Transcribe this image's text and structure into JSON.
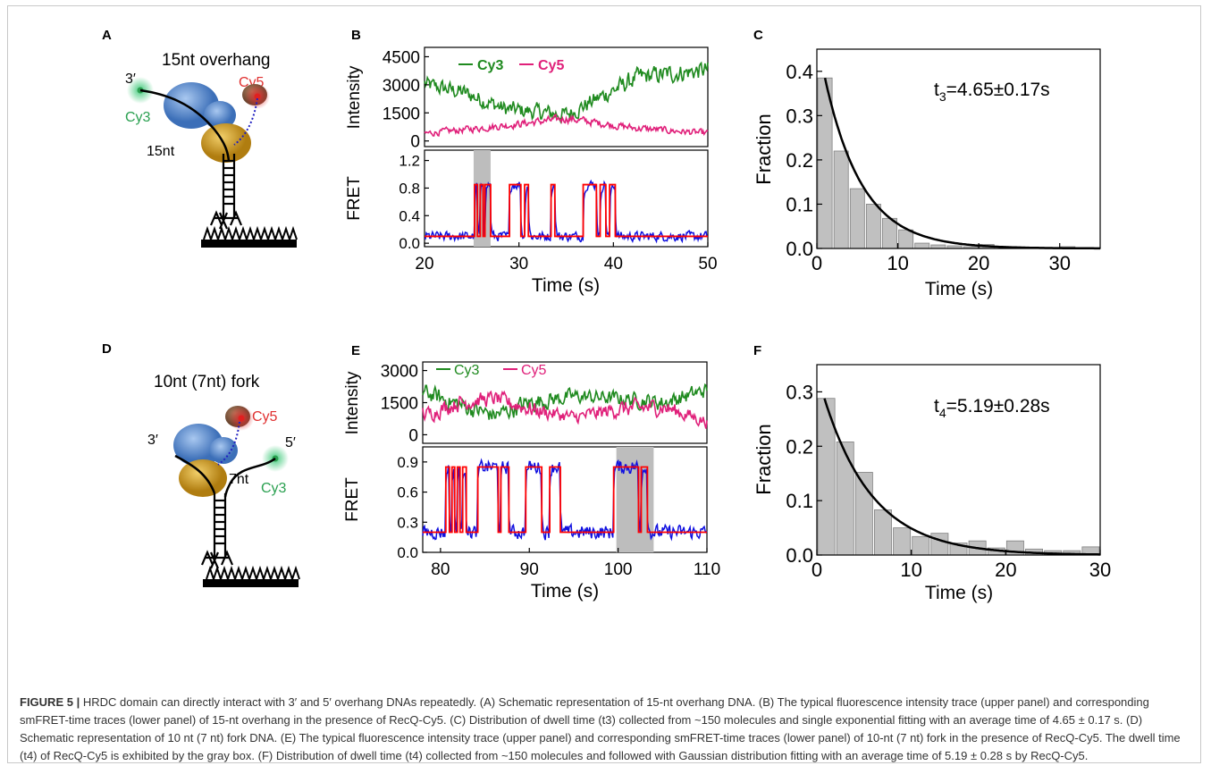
{
  "panels": {
    "A": {
      "letter": "A",
      "title": "15nt overhang",
      "label_3prime": "3′",
      "label_cy3": "Cy3",
      "label_cy5": "Cy5",
      "label_len": "15nt"
    },
    "D": {
      "letter": "D",
      "title": "10nt (7nt) fork",
      "label_3prime": "3′",
      "label_5prime": "5′",
      "label_cy3": "Cy3",
      "label_cy5": "Cy5",
      "label_len": "7nt"
    },
    "B": {
      "letter": "B"
    },
    "C": {
      "letter": "C"
    },
    "E": {
      "letter": "E"
    },
    "F": {
      "letter": "F"
    }
  },
  "colors": {
    "cy3": "#1f8a1f",
    "cy5": "#e0207a",
    "fret": "#1010e0",
    "fit": "#ff0000",
    "bar": "#c0c0c0",
    "fitcurve": "#000000",
    "cy3_dye": "#3cc878",
    "cy5_dye": "#e03030",
    "protein_blue": "#5b8fd4",
    "protein_gold": "#d4a020"
  },
  "chart_data": [
    {
      "id": "B",
      "type": "line",
      "top": {
        "ylabel": "Intensity",
        "yticks": [
          0,
          1500,
          3000,
          4500
        ],
        "ylim": [
          -300,
          5000
        ],
        "series": [
          {
            "name": "Cy3",
            "color": "#1f8a1f",
            "segments": [
              [
                20,
                3000,
                900
              ],
              [
                24,
                2600,
                900
              ],
              [
                28.5,
                1700,
                900
              ],
              [
                35,
                1400,
                900
              ],
              [
                42.5,
                3400,
                1000
              ],
              [
                50,
                3800,
                1000
              ]
            ]
          },
          {
            "name": "Cy5",
            "color": "#e0207a",
            "segments": [
              [
                20,
                400,
                350
              ],
              [
                28,
                800,
                400
              ],
              [
                35,
                1200,
                450
              ],
              [
                42,
                700,
                400
              ],
              [
                50,
                400,
                350
              ]
            ]
          }
        ]
      },
      "bottom": {
        "ylabel": "FRET",
        "yticks": [
          0.0,
          0.4,
          0.8,
          1.2
        ],
        "ylim": [
          -0.05,
          1.35
        ],
        "states": [
          [
            20,
            0.1
          ],
          [
            25.3,
            0.85
          ],
          [
            25.6,
            0.1
          ],
          [
            25.9,
            0.85
          ],
          [
            26.2,
            0.1
          ],
          [
            26.4,
            0.85
          ],
          [
            27.0,
            0.1
          ],
          [
            29.0,
            0.85
          ],
          [
            30.2,
            0.1
          ],
          [
            30.6,
            0.85
          ],
          [
            31.0,
            0.1
          ],
          [
            33.4,
            0.85
          ],
          [
            33.8,
            0.1
          ],
          [
            36.8,
            0.85
          ],
          [
            38.2,
            0.1
          ],
          [
            38.6,
            0.85
          ],
          [
            39.2,
            0.1
          ],
          [
            39.6,
            0.85
          ],
          [
            40.2,
            0.1
          ],
          [
            50,
            0.1
          ]
        ],
        "shade": [
          25.2,
          27.0
        ]
      },
      "xlabel": "Time (s)",
      "xticks": [
        20,
        30,
        40,
        50
      ],
      "xlim": [
        20,
        50
      ]
    },
    {
      "id": "C",
      "type": "bar",
      "xlabel": "Time (s)",
      "ylabel": "Fraction",
      "xticks": [
        0,
        10,
        20,
        30
      ],
      "yticks": [
        0.0,
        0.1,
        0.2,
        0.3,
        0.4
      ],
      "xlim": [
        0,
        35
      ],
      "ylim": [
        0,
        0.45
      ],
      "bin_width": 2,
      "bin_starts": [
        0,
        2,
        4,
        6,
        8,
        10,
        12,
        14,
        16,
        18,
        20,
        22,
        24,
        26,
        28,
        30,
        32
      ],
      "values": [
        0.385,
        0.22,
        0.135,
        0.1,
        0.068,
        0.042,
        0.012,
        0.008,
        0.006,
        0.004,
        0.009,
        0.0,
        0.0,
        0.0,
        0.0,
        0.004,
        0.0
      ],
      "fit": {
        "t": 4.65,
        "A": 0.46,
        "x0": 1
      },
      "annotation": {
        "t_label": "t",
        "sub": "3",
        "value": "=4.65±0.17s"
      }
    },
    {
      "id": "E",
      "type": "line",
      "top": {
        "ylabel": "Intensity",
        "yticks": [
          0,
          1500,
          3000
        ],
        "ylim": [
          -400,
          3400
        ],
        "series": [
          {
            "name": "Cy3",
            "color": "#1f8a1f",
            "segments": [
              [
                78,
                2000,
                800
              ],
              [
                82,
                1400,
                900
              ],
              [
                86,
                900,
                800
              ],
              [
                90,
                1500,
                900
              ],
              [
                95,
                1800,
                700
              ],
              [
                100,
                1700,
                700
              ],
              [
                105,
                1500,
                800
              ],
              [
                110,
                2100,
                700
              ]
            ]
          },
          {
            "name": "Cy5",
            "color": "#e0207a",
            "segments": [
              [
                78,
                900,
                700
              ],
              [
                82,
                1500,
                800
              ],
              [
                86,
                1700,
                700
              ],
              [
                90,
                1200,
                800
              ],
              [
                95,
                800,
                600
              ],
              [
                100,
                1200,
                800
              ],
              [
                105,
                1300,
                800
              ],
              [
                110,
                600,
                600
              ]
            ]
          }
        ]
      },
      "bottom": {
        "ylabel": "FRET",
        "yticks": [
          0.0,
          0.3,
          0.6,
          0.9
        ],
        "ylim": [
          0,
          1.05
        ],
        "states": [
          [
            78,
            0.2
          ],
          [
            80.6,
            0.85
          ],
          [
            81.0,
            0.2
          ],
          [
            81.3,
            0.85
          ],
          [
            81.6,
            0.2
          ],
          [
            81.9,
            0.85
          ],
          [
            82.2,
            0.2
          ],
          [
            82.5,
            0.85
          ],
          [
            82.9,
            0.2
          ],
          [
            84.2,
            0.85
          ],
          [
            86.5,
            0.2
          ],
          [
            86.8,
            0.85
          ],
          [
            87.7,
            0.2
          ],
          [
            89.6,
            0.85
          ],
          [
            91.4,
            0.2
          ],
          [
            92.3,
            0.85
          ],
          [
            93.5,
            0.2
          ],
          [
            99.5,
            0.85
          ],
          [
            102.3,
            0.2
          ],
          [
            102.6,
            0.85
          ],
          [
            103.3,
            0.2
          ],
          [
            110,
            0.2
          ]
        ],
        "shade": [
          99.8,
          104.0
        ]
      },
      "xlabel": "Time (s)",
      "xticks": [
        80,
        90,
        100,
        110
      ],
      "xlim": [
        78,
        110
      ]
    },
    {
      "id": "F",
      "type": "bar",
      "xlabel": "Time (s)",
      "ylabel": "Fraction",
      "xticks": [
        0,
        10,
        20,
        30
      ],
      "yticks": [
        0.0,
        0.1,
        0.2,
        0.3
      ],
      "xlim": [
        0,
        30
      ],
      "ylim": [
        0,
        0.35
      ],
      "bin_width": 2,
      "bin_starts": [
        0,
        2,
        4,
        6,
        8,
        10,
        12,
        14,
        16,
        18,
        20,
        22,
        24,
        26,
        28
      ],
      "values": [
        0.288,
        0.208,
        0.152,
        0.083,
        0.05,
        0.034,
        0.04,
        0.022,
        0.026,
        0.013,
        0.026,
        0.011,
        0.008,
        0.008,
        0.015
      ],
      "fit": {
        "t": 5.19,
        "A": 0.34,
        "x0": 0.8
      },
      "annotation": {
        "t_label": "t",
        "sub": "4",
        "value": "=5.19±0.28s"
      }
    }
  ],
  "caption": {
    "head": "FIGURE 5 |",
    "text": " HRDC domain can directly interact with 3′ and 5′ overhang DNAs repeatedly. (A) Schematic representation of 15-nt overhang DNA. (B) The typical fluorescence intensity trace (upper panel) and corresponding smFRET-time traces (lower panel) of 15-nt overhang in the presence of RecQ-Cy5. (C) Distribution of dwell time (t3) collected from ~150 molecules and single exponential fitting with an average time of 4.65 ± 0.17 s. (D) Schematic representation of 10 nt (7 nt) fork DNA. (E) The typical fluorescence intensity trace (upper panel) and corresponding smFRET-time traces (lower panel) of 10-nt (7 nt) fork in the presence of RecQ-Cy5. The dwell time (t4) of RecQ-Cy5 is exhibited by the gray box. (F) Distribution of dwell time (t4) collected from ~150 molecules and followed with Gaussian distribution fitting with an average time of 5.19 ± 0.28 s by RecQ-Cy5."
  }
}
